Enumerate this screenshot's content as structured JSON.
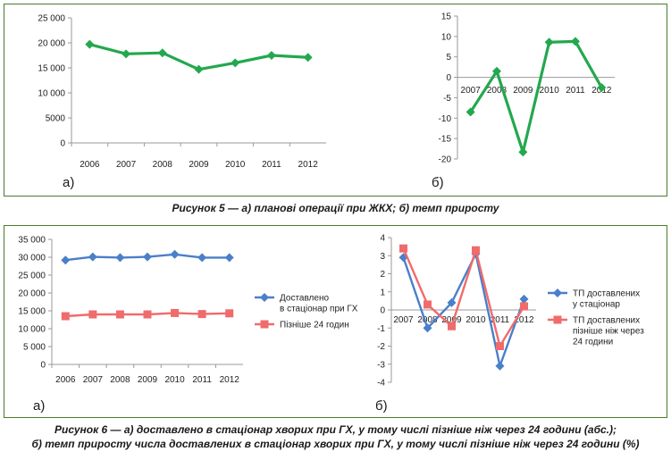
{
  "figure5": {
    "caption": "Рисунок 5 — а) планові операції при ЖКХ; б) темп приросту",
    "panel_a_letter": "а)",
    "panel_b_letter": "б)"
  },
  "figure6": {
    "caption_line1": "Рисунок 6 — а) доставлено в стаціонар хворих при ГХ, у тому числі пізніше ніж через 24 години (абс.);",
    "caption_line2": "б) темп приросту числа доставлених в стаціонар хворих при ГХ, у тому числі пізніше ніж через 24 години (%)",
    "panel_a_letter": "а)",
    "panel_b_letter": "б)"
  },
  "colors": {
    "green": "#23a84e",
    "blue": "#4a7fc9",
    "red": "#f06b6b",
    "frame": "#4a7c2a"
  },
  "chart_data": [
    {
      "id": "fig5a",
      "type": "line",
      "categories": [
        "2006",
        "2007",
        "2008",
        "2009",
        "2010",
        "2011",
        "2012"
      ],
      "series": [
        {
          "values": [
            19700,
            17800,
            18000,
            14700,
            16000,
            17500,
            17100
          ]
        }
      ],
      "ylim": [
        0,
        25000
      ],
      "yticks": [
        0,
        5000,
        10000,
        15000,
        20000,
        25000
      ],
      "ytick_labels": [
        "0",
        "5000",
        "10 000",
        "15 000",
        "20 000",
        "25 000"
      ],
      "grid": false
    },
    {
      "id": "fig5b",
      "type": "line",
      "categories": [
        "2007",
        "2008",
        "2009",
        "2010",
        "2011",
        "2012"
      ],
      "series": [
        {
          "values": [
            -8.5,
            1.5,
            -18.3,
            8.6,
            8.8,
            -2.5
          ]
        }
      ],
      "ylim": [
        -20,
        15
      ],
      "yticks": [
        -20,
        -15,
        -10,
        -5,
        0,
        5,
        10,
        15
      ],
      "ytick_labels": [
        "-20",
        "-15",
        "-10",
        "-5",
        "0",
        "5",
        "10",
        "15"
      ],
      "grid": false
    },
    {
      "id": "fig6a",
      "type": "line",
      "categories": [
        "2006",
        "2007",
        "2008",
        "2009",
        "2010",
        "2011",
        "2012"
      ],
      "series": [
        {
          "name": "Доставлено в стаціонар при ГХ",
          "legend_lines": [
            "Доставлено",
            "в стаціонар при ГХ"
          ],
          "values": [
            29200,
            30100,
            29900,
            30100,
            30800,
            29900,
            29900
          ]
        },
        {
          "name": "Пізніше 24 годин",
          "legend_lines": [
            "Пізніше 24 годин"
          ],
          "values": [
            13500,
            14000,
            14000,
            14000,
            14400,
            14100,
            14300
          ]
        }
      ],
      "ylim": [
        0,
        35000
      ],
      "yticks": [
        0,
        5000,
        10000,
        15000,
        20000,
        25000,
        30000,
        35000
      ],
      "ytick_labels": [
        "0",
        "5 000",
        "10 000",
        "15 000",
        "20 000",
        "25 000",
        "30 000",
        "35 000"
      ],
      "legend": "right",
      "grid": false
    },
    {
      "id": "fig6b",
      "type": "line",
      "categories": [
        "2007",
        "2008",
        "2009",
        "2010",
        "2011",
        "2012"
      ],
      "series": [
        {
          "name": "ТП доставлених у стаціонар",
          "legend_lines": [
            "ТП доставлених",
            "у стаціонар"
          ],
          "values": [
            2.9,
            -1.0,
            0.4,
            3.1,
            -3.1,
            0.6
          ]
        },
        {
          "name": "ТП доставлених пізніше ніж через 24 години",
          "legend_lines": [
            "ТП доставлених",
            "пізніше ніж через",
            "24 години"
          ],
          "values": [
            3.4,
            0.3,
            -0.9,
            3.3,
            -2.0,
            0.2
          ]
        }
      ],
      "ylim": [
        -4,
        4
      ],
      "yticks": [
        -4,
        -3,
        -2,
        -1,
        0,
        1,
        2,
        3,
        4
      ],
      "ytick_labels": [
        "-4",
        "-3",
        "-2",
        "-1",
        "0",
        "1",
        "2",
        "3",
        "4"
      ],
      "legend": "right",
      "grid": false
    }
  ]
}
